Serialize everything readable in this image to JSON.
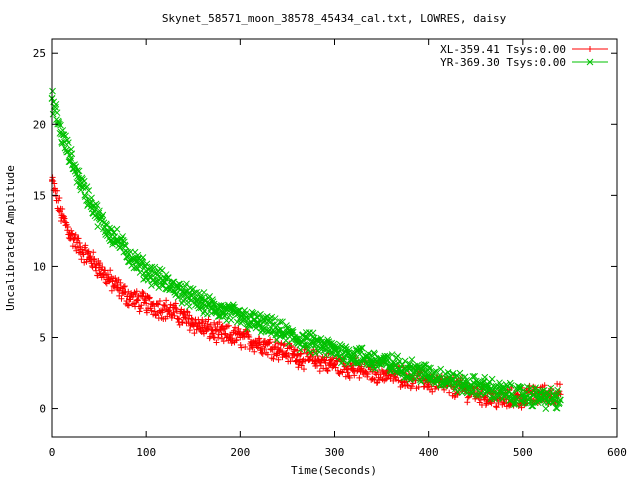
{
  "chart_data": {
    "type": "scatter",
    "title": "Skynet_58571_moon_38578_45434_cal.txt, LOWRES, daisy",
    "xlabel": "Time(Seconds)",
    "ylabel": "Uncalibrated Amplitude",
    "xlim": [
      0,
      600
    ],
    "ylim": [
      -2,
      26
    ],
    "xticks": [
      "0",
      "100",
      "200",
      "300",
      "400",
      "500",
      "600"
    ],
    "yticks": [
      "0",
      "5",
      "10",
      "15",
      "20",
      "25"
    ],
    "grid": false,
    "legend_position": "top-right",
    "series": [
      {
        "name": "XL-359.41 Tsys:0.00",
        "color": "#ff0000",
        "marker": "+",
        "x": [
          0,
          10,
          20,
          30,
          40,
          50,
          60,
          70,
          80,
          90,
          100,
          120,
          140,
          160,
          180,
          200,
          220,
          240,
          260,
          280,
          300,
          320,
          340,
          360,
          380,
          400,
          420,
          440,
          460,
          480,
          500,
          520,
          540
        ],
        "y": [
          16.0,
          13.6,
          12.2,
          11.2,
          10.6,
          9.9,
          9.1,
          8.5,
          7.9,
          7.6,
          7.4,
          7.0,
          6.4,
          5.7,
          5.2,
          5.0,
          4.6,
          4.2,
          3.7,
          3.4,
          3.1,
          2.8,
          2.6,
          2.4,
          2.2,
          1.9,
          1.6,
          1.3,
          0.9,
          0.6,
          0.8,
          1.0,
          1.0
        ]
      },
      {
        "name": "YR-369.30 Tsys:0.00",
        "color": "#00c000",
        "marker": "x",
        "x": [
          0,
          10,
          20,
          30,
          40,
          50,
          60,
          70,
          80,
          90,
          100,
          120,
          140,
          160,
          180,
          200,
          220,
          240,
          260,
          280,
          300,
          320,
          340,
          360,
          380,
          400,
          420,
          440,
          460,
          480,
          500,
          520,
          540
        ],
        "y": [
          21.8,
          19.3,
          17.6,
          16.0,
          14.7,
          13.4,
          12.5,
          11.8,
          11.0,
          10.3,
          9.7,
          8.9,
          8.1,
          7.4,
          6.9,
          6.4,
          6.0,
          5.5,
          4.9,
          4.5,
          4.1,
          3.8,
          3.4,
          3.1,
          2.8,
          2.4,
          2.1,
          1.6,
          1.5,
          1.1,
          0.9,
          0.8,
          0.6
        ]
      }
    ]
  }
}
